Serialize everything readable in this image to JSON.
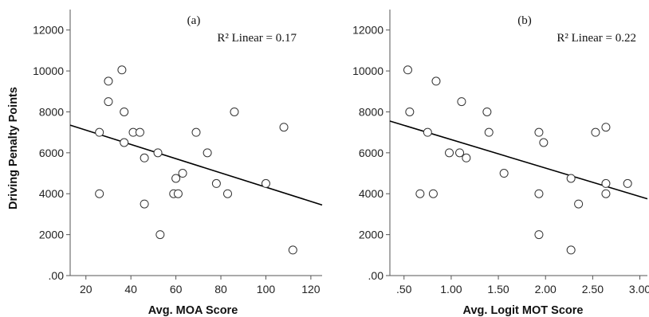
{
  "chart_data": [
    {
      "type": "scatter",
      "panel_label": "(a)",
      "annotation": "R² Linear = 0.17",
      "xlabel": "Avg. MOA Score",
      "ylabel": "Driving Penalty Points",
      "xlim": [
        13,
        125
      ],
      "ylim": [
        0,
        13000
      ],
      "x_ticks": [
        20,
        40,
        60,
        80,
        100,
        120
      ],
      "x_tick_labels": [
        "20",
        "40",
        "60",
        "80",
        "100",
        "120"
      ],
      "y_ticks": [
        0,
        2000,
        4000,
        6000,
        8000,
        10000,
        12000
      ],
      "y_tick_labels": [
        ".00",
        "2000",
        "4000",
        "6000",
        "8000",
        "10000",
        "12000"
      ],
      "points": [
        {
          "x": 26,
          "y": 7000
        },
        {
          "x": 26,
          "y": 4000
        },
        {
          "x": 30,
          "y": 9500
        },
        {
          "x": 30,
          "y": 8500
        },
        {
          "x": 36,
          "y": 10050
        },
        {
          "x": 37,
          "y": 8000
        },
        {
          "x": 37,
          "y": 6500
        },
        {
          "x": 41,
          "y": 7000
        },
        {
          "x": 44,
          "y": 7000
        },
        {
          "x": 46,
          "y": 5750
        },
        {
          "x": 46,
          "y": 3500
        },
        {
          "x": 52,
          "y": 6000
        },
        {
          "x": 53,
          "y": 2000
        },
        {
          "x": 59,
          "y": 4000
        },
        {
          "x": 60,
          "y": 4750
        },
        {
          "x": 61,
          "y": 4000
        },
        {
          "x": 63,
          "y": 5000
        },
        {
          "x": 69,
          "y": 7000
        },
        {
          "x": 74,
          "y": 6000
        },
        {
          "x": 78,
          "y": 4500
        },
        {
          "x": 83,
          "y": 4000
        },
        {
          "x": 86,
          "y": 8000
        },
        {
          "x": 100,
          "y": 4500
        },
        {
          "x": 108,
          "y": 7250
        },
        {
          "x": 112,
          "y": 1250
        }
      ],
      "fit_line": {
        "x": [
          13,
          125
        ],
        "y": [
          7350,
          3450
        ]
      }
    },
    {
      "type": "scatter",
      "panel_label": "(b)",
      "annotation": "R² Linear = 0.22",
      "xlabel": "Avg. Logit MOT Score",
      "ylabel": "",
      "xlim": [
        0.35,
        3.08
      ],
      "ylim": [
        0,
        13000
      ],
      "x_ticks": [
        0.5,
        1.0,
        1.5,
        2.0,
        2.5,
        3.0
      ],
      "x_tick_labels": [
        ".50",
        "1.00",
        "1.50",
        "2.00",
        "2.50",
        "3.00"
      ],
      "y_ticks": [
        0,
        2000,
        4000,
        6000,
        8000,
        10000,
        12000
      ],
      "y_tick_labels": [
        ".00",
        "2000",
        "4000",
        "6000",
        "8000",
        "10000",
        "12000"
      ],
      "points": [
        {
          "x": 0.54,
          "y": 10050
        },
        {
          "x": 0.56,
          "y": 8000
        },
        {
          "x": 0.67,
          "y": 4000
        },
        {
          "x": 0.75,
          "y": 7000
        },
        {
          "x": 0.81,
          "y": 4000
        },
        {
          "x": 0.84,
          "y": 9500
        },
        {
          "x": 0.98,
          "y": 6000
        },
        {
          "x": 1.09,
          "y": 6000
        },
        {
          "x": 1.11,
          "y": 8500
        },
        {
          "x": 1.16,
          "y": 5750
        },
        {
          "x": 1.38,
          "y": 8000
        },
        {
          "x": 1.4,
          "y": 7000
        },
        {
          "x": 1.56,
          "y": 5000
        },
        {
          "x": 1.93,
          "y": 7000
        },
        {
          "x": 1.93,
          "y": 4000
        },
        {
          "x": 1.93,
          "y": 2000
        },
        {
          "x": 1.98,
          "y": 6500
        },
        {
          "x": 2.27,
          "y": 4750
        },
        {
          "x": 2.27,
          "y": 1250
        },
        {
          "x": 2.35,
          "y": 3500
        },
        {
          "x": 2.53,
          "y": 7000
        },
        {
          "x": 2.64,
          "y": 7250
        },
        {
          "x": 2.64,
          "y": 4500
        },
        {
          "x": 2.64,
          "y": 4000
        },
        {
          "x": 2.87,
          "y": 4500
        }
      ],
      "fit_line": {
        "x": [
          0.35,
          3.08
        ],
        "y": [
          7550,
          3750
        ]
      }
    }
  ]
}
